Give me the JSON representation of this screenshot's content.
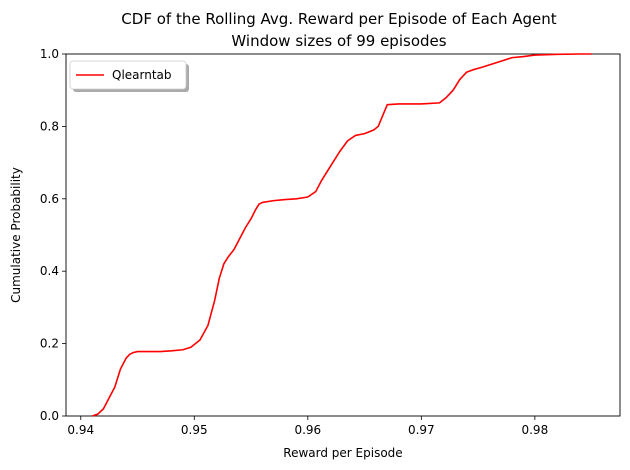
{
  "chart_data": {
    "type": "line",
    "title": "CDF of the Rolling Avg. Reward per Episode of Each Agent",
    "subtitle": "Window sizes of 99 episodes",
    "xlabel": "Reward per Episode",
    "ylabel": "Cumulative Probability",
    "xlim": [
      0.9387,
      0.9875
    ],
    "ylim": [
      0.0,
      1.0
    ],
    "xticks": [
      0.94,
      0.95,
      0.96,
      0.97,
      0.98
    ],
    "xtick_labels": [
      "0.94",
      "0.95",
      "0.96",
      "0.97",
      "0.98"
    ],
    "yticks": [
      0.0,
      0.2,
      0.4,
      0.6,
      0.8,
      1.0
    ],
    "ytick_labels": [
      "0.0",
      "0.2",
      "0.4",
      "0.6",
      "0.8",
      "1.0"
    ],
    "grid": false,
    "legend_position": "top-left",
    "series": [
      {
        "name": "Qlearntab",
        "color": "#ff0000",
        "x": [
          0.941,
          0.9415,
          0.942,
          0.9425,
          0.943,
          0.9435,
          0.944,
          0.9443,
          0.9446,
          0.945,
          0.946,
          0.947,
          0.948,
          0.949,
          0.9497,
          0.9505,
          0.9512,
          0.9518,
          0.9522,
          0.9526,
          0.953,
          0.9535,
          0.954,
          0.9545,
          0.955,
          0.9554,
          0.9557,
          0.956,
          0.957,
          0.958,
          0.959,
          0.96,
          0.9607,
          0.9612,
          0.9616,
          0.9622,
          0.9628,
          0.9635,
          0.9642,
          0.965,
          0.9658,
          0.9662,
          0.9666,
          0.967,
          0.968,
          0.97,
          0.9716,
          0.9722,
          0.9728,
          0.9734,
          0.974,
          0.9746,
          0.9752,
          0.976,
          0.977,
          0.978,
          0.979,
          0.98,
          0.982,
          0.984,
          0.985
        ],
        "y": [
          0.0,
          0.005,
          0.02,
          0.05,
          0.08,
          0.13,
          0.16,
          0.17,
          0.175,
          0.178,
          0.178,
          0.178,
          0.18,
          0.183,
          0.19,
          0.21,
          0.25,
          0.32,
          0.38,
          0.42,
          0.44,
          0.46,
          0.49,
          0.52,
          0.545,
          0.57,
          0.585,
          0.59,
          0.595,
          0.598,
          0.6,
          0.605,
          0.62,
          0.65,
          0.67,
          0.7,
          0.73,
          0.76,
          0.775,
          0.78,
          0.79,
          0.8,
          0.83,
          0.86,
          0.862,
          0.862,
          0.865,
          0.88,
          0.9,
          0.93,
          0.95,
          0.957,
          0.962,
          0.97,
          0.98,
          0.99,
          0.993,
          0.997,
          0.999,
          1.0,
          1.0
        ]
      }
    ]
  }
}
